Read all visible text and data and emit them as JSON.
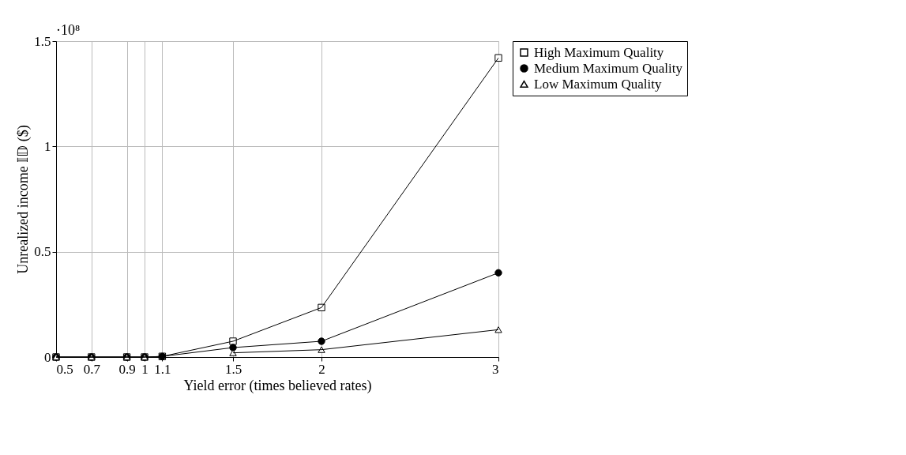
{
  "chart_data": {
    "type": "line",
    "xlabel": "Yield error (times believed rates)",
    "ylabel": "Unrealized income 𝕀𝔻 ($)",
    "annotations": [
      "·10⁸"
    ],
    "x": [
      0.5,
      0.7,
      0.9,
      1,
      1.1,
      1.5,
      2,
      3
    ],
    "series": [
      {
        "name": "High Maximum Quality",
        "color": "#000000",
        "marker": "square",
        "values": [
          0,
          0,
          0,
          0,
          0.003,
          0.075,
          0.235,
          1.42
        ]
      },
      {
        "name": "Medium Maximum Quality",
        "color": "#000000",
        "marker": "circle",
        "values": [
          0,
          0,
          0,
          0,
          0.003,
          0.045,
          0.075,
          0.4
        ]
      },
      {
        "name": "Low Maximum Quality",
        "color": "#000000",
        "marker": "triangle",
        "values": [
          0,
          0,
          0,
          0,
          null,
          0.02,
          0.035,
          0.13
        ]
      }
    ],
    "xlim": [
      0.5,
      3
    ],
    "xticks": [
      0.5,
      0.7,
      0.9,
      1,
      1.1,
      1.5,
      2,
      3
    ],
    "ylim": [
      0,
      1.5
    ],
    "yticks": [
      0,
      0.5,
      1,
      1.5
    ],
    "grid": true,
    "legend": "top right",
    "line_style": "solid"
  }
}
